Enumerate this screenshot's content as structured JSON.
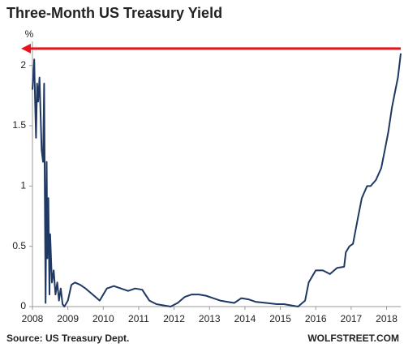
{
  "chart_data": {
    "type": "line",
    "title": "Three-Month US Treasury Yield",
    "y_label": "%",
    "source": "Source: US Treasury Dept.",
    "credit": "WOLFSTREET.COM",
    "xlim": [
      2008,
      2018.4
    ],
    "ylim": [
      0,
      2.2
    ],
    "xticks": [
      2008,
      2009,
      2010,
      2011,
      2012,
      2013,
      2014,
      2015,
      2016,
      2017,
      2018
    ],
    "yticks": [
      0,
      0.5,
      1,
      1.5,
      2
    ],
    "reference_line": {
      "value": 2.14,
      "color": "#e8141c"
    },
    "series": [
      {
        "name": "3-Month Yield",
        "color": "#1f3864",
        "x": [
          2008.0,
          2008.02,
          2008.05,
          2008.07,
          2008.1,
          2008.13,
          2008.16,
          2008.2,
          2008.23,
          2008.26,
          2008.3,
          2008.33,
          2008.35,
          2008.37,
          2008.4,
          2008.42,
          2008.45,
          2008.48,
          2008.5,
          2008.55,
          2008.6,
          2008.65,
          2008.7,
          2008.75,
          2008.8,
          2008.85,
          2008.9,
          2009.0,
          2009.1,
          2009.2,
          2009.35,
          2009.5,
          2009.7,
          2009.9,
          2010.0,
          2010.1,
          2010.3,
          2010.5,
          2010.7,
          2010.9,
          2011.1,
          2011.3,
          2011.5,
          2011.7,
          2011.9,
          2012.1,
          2012.3,
          2012.5,
          2012.7,
          2012.9,
          2013.1,
          2013.3,
          2013.5,
          2013.7,
          2013.9,
          2014.1,
          2014.3,
          2014.6,
          2014.9,
          2015.1,
          2015.3,
          2015.5,
          2015.7,
          2015.8,
          2015.9,
          2016.0,
          2016.2,
          2016.4,
          2016.6,
          2016.8,
          2016.85,
          2016.95,
          2017.05,
          2017.2,
          2017.3,
          2017.45,
          2017.55,
          2017.7,
          2017.85,
          2017.95,
          2018.05,
          2018.15,
          2018.25,
          2018.32,
          2018.4
        ],
        "values": [
          1.8,
          1.9,
          2.05,
          1.75,
          1.4,
          1.85,
          1.7,
          1.9,
          1.6,
          1.3,
          1.2,
          1.85,
          0.9,
          0.03,
          1.2,
          0.4,
          0.9,
          0.1,
          0.6,
          0.2,
          0.3,
          0.1,
          0.2,
          0.05,
          0.15,
          0.02,
          0.0,
          0.05,
          0.18,
          0.2,
          0.18,
          0.15,
          0.1,
          0.05,
          0.1,
          0.15,
          0.17,
          0.15,
          0.13,
          0.15,
          0.14,
          0.05,
          0.02,
          0.01,
          0.0,
          0.03,
          0.08,
          0.1,
          0.1,
          0.09,
          0.07,
          0.05,
          0.04,
          0.03,
          0.07,
          0.06,
          0.04,
          0.03,
          0.02,
          0.02,
          0.01,
          0.0,
          0.05,
          0.2,
          0.25,
          0.3,
          0.3,
          0.27,
          0.32,
          0.33,
          0.45,
          0.5,
          0.52,
          0.75,
          0.9,
          1.0,
          1.0,
          1.05,
          1.15,
          1.3,
          1.45,
          1.65,
          1.8,
          1.9,
          2.1
        ]
      }
    ]
  }
}
